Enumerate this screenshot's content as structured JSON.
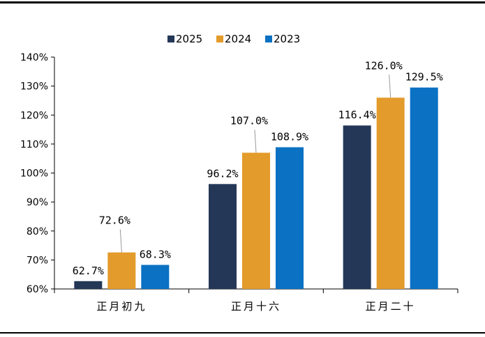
{
  "chart_data": {
    "type": "bar",
    "title": "",
    "xlabel": "",
    "ylabel": "",
    "categories": [
      "正月初九",
      "正月十六",
      "正月二十"
    ],
    "series": [
      {
        "name": "2025",
        "values": [
          62.7,
          96.2,
          116.4
        ],
        "labels": [
          "62.7%",
          "96.2%",
          "116.4%"
        ],
        "color": "#243757"
      },
      {
        "name": "2024",
        "values": [
          72.6,
          107.0,
          126.0
        ],
        "labels": [
          "72.6%",
          "107.0%",
          "126.0%"
        ],
        "color": "#e39b2b"
      },
      {
        "name": "2023",
        "values": [
          68.3,
          108.9,
          129.5
        ],
        "labels": [
          "68.3%",
          "108.9%",
          "129.5%"
        ],
        "color": "#0a71c3"
      }
    ],
    "ylim": [
      60,
      140
    ],
    "yticks": [
      60,
      70,
      80,
      90,
      100,
      110,
      120,
      130,
      140
    ],
    "ytick_labels": [
      "60%",
      "70%",
      "80%",
      "90%",
      "100%",
      "110%",
      "120%",
      "130%",
      "140%"
    ],
    "legend": "top-center",
    "grid": false
  }
}
